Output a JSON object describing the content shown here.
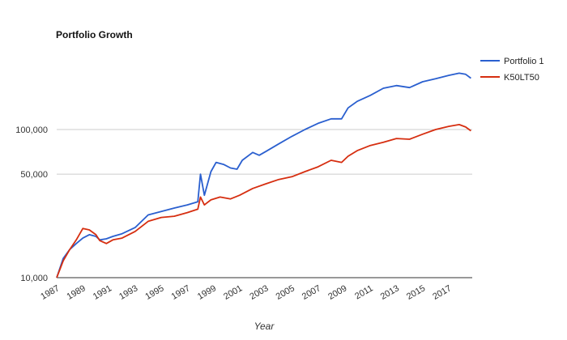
{
  "chart_data": {
    "type": "line",
    "title": "Portfolio Growth",
    "xlabel": "Year",
    "ylabel": "",
    "y_scale": "log",
    "ylim": [
      10000,
      260000
    ],
    "xlim": [
      1987,
      2018.8
    ],
    "y_ticks": [
      {
        "value": 10000,
        "label": "10,000"
      },
      {
        "value": 50000,
        "label": "50,000"
      },
      {
        "value": 100000,
        "label": "100,000"
      }
    ],
    "x_ticks": [
      {
        "value": 1987,
        "label": "1987"
      },
      {
        "value": 1989,
        "label": "1989"
      },
      {
        "value": 1991,
        "label": "1991"
      },
      {
        "value": 1993,
        "label": "1993"
      },
      {
        "value": 1995,
        "label": "1995"
      },
      {
        "value": 1997,
        "label": "1997"
      },
      {
        "value": 1999,
        "label": "1999"
      },
      {
        "value": 2001,
        "label": "2001"
      },
      {
        "value": 2003,
        "label": "2003"
      },
      {
        "value": 2005,
        "label": "2005"
      },
      {
        "value": 2007,
        "label": "2007"
      },
      {
        "value": 2009,
        "label": "2009"
      },
      {
        "value": 2011,
        "label": "2011"
      },
      {
        "value": 2013,
        "label": "2013"
      },
      {
        "value": 2015,
        "label": "2015"
      },
      {
        "value": 2017,
        "label": "2017"
      }
    ],
    "legend_position": "top-right",
    "series": [
      {
        "name": "Portfolio 1",
        "color": "#2a5fcf",
        "points": [
          [
            1987.0,
            10000
          ],
          [
            1987.5,
            13500
          ],
          [
            1988.0,
            15500
          ],
          [
            1988.5,
            17000
          ],
          [
            1989.0,
            18500
          ],
          [
            1989.5,
            19500
          ],
          [
            1990.0,
            19000
          ],
          [
            1990.3,
            18000
          ],
          [
            1990.8,
            18300
          ],
          [
            1991.3,
            19000
          ],
          [
            1992.0,
            19800
          ],
          [
            1993.0,
            21800
          ],
          [
            1994.0,
            26500
          ],
          [
            1995.0,
            28000
          ],
          [
            1996.0,
            29500
          ],
          [
            1997.0,
            31000
          ],
          [
            1997.8,
            32500
          ],
          [
            1998.0,
            50000
          ],
          [
            1998.3,
            36000
          ],
          [
            1998.8,
            52000
          ],
          [
            1999.2,
            60000
          ],
          [
            1999.8,
            58000
          ],
          [
            2000.3,
            55000
          ],
          [
            2000.8,
            54000
          ],
          [
            2001.2,
            62000
          ],
          [
            2002.0,
            70000
          ],
          [
            2002.5,
            67000
          ],
          [
            2003.0,
            71000
          ],
          [
            2004.0,
            80000
          ],
          [
            2005.0,
            90000
          ],
          [
            2006.0,
            100000
          ],
          [
            2007.0,
            110000
          ],
          [
            2008.0,
            118000
          ],
          [
            2008.8,
            118000
          ],
          [
            2009.3,
            140000
          ],
          [
            2010.0,
            155000
          ],
          [
            2011.0,
            170000
          ],
          [
            2012.0,
            190000
          ],
          [
            2013.0,
            198000
          ],
          [
            2014.0,
            192000
          ],
          [
            2015.0,
            210000
          ],
          [
            2016.0,
            220000
          ],
          [
            2017.0,
            232000
          ],
          [
            2017.8,
            240000
          ],
          [
            2018.3,
            236000
          ],
          [
            2018.7,
            222000
          ]
        ]
      },
      {
        "name": "K50LT50",
        "color": "#d62e10",
        "points": [
          [
            1987.0,
            10000
          ],
          [
            1987.5,
            13000
          ],
          [
            1988.0,
            15500
          ],
          [
            1988.5,
            18000
          ],
          [
            1989.0,
            21500
          ],
          [
            1989.5,
            21000
          ],
          [
            1990.0,
            19500
          ],
          [
            1990.3,
            17800
          ],
          [
            1990.8,
            17000
          ],
          [
            1991.3,
            18000
          ],
          [
            1992.0,
            18500
          ],
          [
            1993.0,
            20500
          ],
          [
            1994.0,
            24000
          ],
          [
            1995.0,
            25500
          ],
          [
            1996.0,
            26000
          ],
          [
            1997.0,
            27500
          ],
          [
            1997.8,
            29000
          ],
          [
            1998.0,
            35000
          ],
          [
            1998.3,
            31000
          ],
          [
            1998.8,
            33500
          ],
          [
            1999.5,
            35000
          ],
          [
            2000.3,
            34000
          ],
          [
            2001.0,
            36000
          ],
          [
            2002.0,
            40000
          ],
          [
            2003.0,
            43000
          ],
          [
            2004.0,
            46000
          ],
          [
            2005.0,
            48000
          ],
          [
            2006.0,
            52000
          ],
          [
            2007.0,
            56000
          ],
          [
            2008.0,
            62000
          ],
          [
            2008.8,
            60000
          ],
          [
            2009.3,
            66000
          ],
          [
            2010.0,
            72000
          ],
          [
            2011.0,
            78000
          ],
          [
            2012.0,
            82000
          ],
          [
            2013.0,
            87000
          ],
          [
            2014.0,
            86000
          ],
          [
            2015.0,
            93000
          ],
          [
            2016.0,
            100000
          ],
          [
            2017.0,
            105000
          ],
          [
            2017.8,
            108000
          ],
          [
            2018.3,
            104000
          ],
          [
            2018.7,
            98000
          ]
        ]
      }
    ]
  }
}
